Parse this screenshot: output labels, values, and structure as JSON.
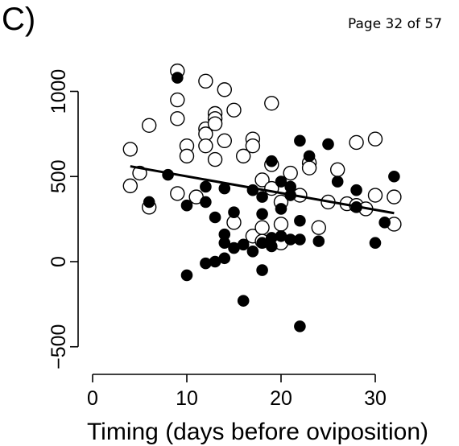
{
  "panel_label": "C)",
  "page_number": "Page 32 of 57",
  "chart_data": {
    "type": "scatter",
    "title": "",
    "xlabel": "Timing (days before oviposition)",
    "ylabel": "",
    "xlim": [
      -1,
      35
    ],
    "ylim": [
      -650,
      1320
    ],
    "x_ticks": [
      0,
      10,
      20,
      30
    ],
    "y_ticks": [
      -500,
      0,
      500,
      1000
    ],
    "x_tick_labels": [
      "0",
      "10",
      "20",
      "30"
    ],
    "y_tick_labels": [
      "−500",
      "0",
      "500",
      "1000"
    ],
    "grid": false,
    "legend": "none",
    "series": [
      {
        "marker": "open-circle",
        "points": [
          [
            4,
            660
          ],
          [
            4,
            445
          ],
          [
            5,
            520
          ],
          [
            6,
            800
          ],
          [
            6,
            320
          ],
          [
            9,
            1120
          ],
          [
            9,
            950
          ],
          [
            9,
            840
          ],
          [
            9,
            400
          ],
          [
            10,
            680
          ],
          [
            10,
            620
          ],
          [
            11,
            380
          ],
          [
            12,
            1060
          ],
          [
            12,
            780
          ],
          [
            12,
            750
          ],
          [
            12,
            680
          ],
          [
            13,
            870
          ],
          [
            13,
            840
          ],
          [
            13,
            810
          ],
          [
            13,
            600
          ],
          [
            14,
            1010
          ],
          [
            14,
            710
          ],
          [
            15,
            890
          ],
          [
            15,
            230
          ],
          [
            16,
            620
          ],
          [
            17,
            720
          ],
          [
            17,
            680
          ],
          [
            17,
            150
          ],
          [
            18,
            480
          ],
          [
            18,
            200
          ],
          [
            18,
            120
          ],
          [
            19,
            930
          ],
          [
            19,
            570
          ],
          [
            19,
            430
          ],
          [
            20,
            350
          ],
          [
            20,
            220
          ],
          [
            20,
            110
          ],
          [
            21,
            520
          ],
          [
            22,
            390
          ],
          [
            23,
            580
          ],
          [
            23,
            550
          ],
          [
            24,
            200
          ],
          [
            25,
            350
          ],
          [
            26,
            540
          ],
          [
            27,
            340
          ],
          [
            28,
            700
          ],
          [
            28,
            330
          ],
          [
            29,
            310
          ],
          [
            30,
            720
          ],
          [
            30,
            390
          ],
          [
            32,
            380
          ],
          [
            32,
            220
          ]
        ]
      },
      {
        "marker": "filled-circle",
        "points": [
          [
            6,
            350
          ],
          [
            8,
            510
          ],
          [
            9,
            1080
          ],
          [
            10,
            330
          ],
          [
            10,
            -80
          ],
          [
            12,
            440
          ],
          [
            12,
            350
          ],
          [
            12,
            -10
          ],
          [
            13,
            260
          ],
          [
            13,
            0
          ],
          [
            14,
            430
          ],
          [
            14,
            160
          ],
          [
            14,
            110
          ],
          [
            14,
            20
          ],
          [
            15,
            290
          ],
          [
            15,
            80
          ],
          [
            16,
            100
          ],
          [
            16,
            -230
          ],
          [
            17,
            420
          ],
          [
            17,
            60
          ],
          [
            18,
            380
          ],
          [
            18,
            280
          ],
          [
            18,
            110
          ],
          [
            18,
            -50
          ],
          [
            19,
            590
          ],
          [
            19,
            140
          ],
          [
            19,
            90
          ],
          [
            20,
            470
          ],
          [
            20,
            310
          ],
          [
            20,
            150
          ],
          [
            21,
            440
          ],
          [
            21,
            390
          ],
          [
            21,
            130
          ],
          [
            22,
            710
          ],
          [
            22,
            240
          ],
          [
            22,
            130
          ],
          [
            22,
            -380
          ],
          [
            23,
            620
          ],
          [
            24,
            120
          ],
          [
            25,
            690
          ],
          [
            26,
            470
          ],
          [
            28,
            420
          ],
          [
            28,
            320
          ],
          [
            30,
            110
          ],
          [
            31,
            230
          ],
          [
            32,
            500
          ]
        ]
      }
    ],
    "trend_line": {
      "x": [
        4,
        32
      ],
      "y": [
        560,
        285
      ]
    },
    "colors": {
      "open_fill": "#ffffff",
      "filled": "#000000",
      "stroke": "#000000"
    }
  }
}
